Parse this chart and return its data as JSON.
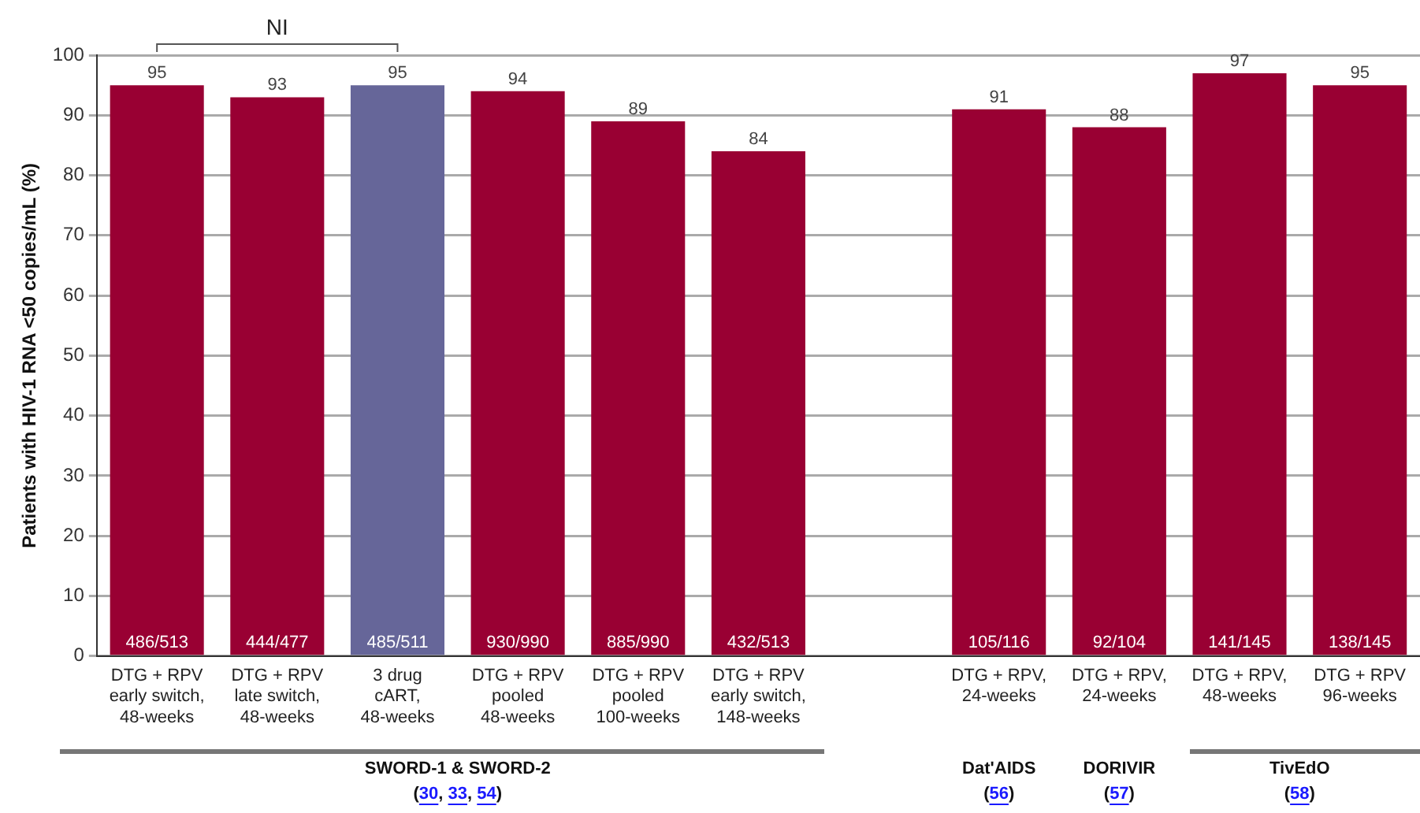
{
  "chart_data": {
    "type": "bar",
    "ylabel": "Patients with HIV-1 RNA <50 copies/mL (%)",
    "categories": [
      "DTG + RPV\nearly switch,\n48-weeks",
      "DTG + RPV\nlate switch,\n48-weeks",
      "3 drug\ncART,\n48-weeks",
      "DTG + RPV\npooled\n48-weeks",
      "DTG + RPV\npooled\n100-weeks",
      "DTG + RPV\nearly switch,\n148-weeks",
      null,
      "DTG + RPV,\n24-weeks",
      "DTG + RPV,\n24-weeks",
      "DTG + RPV,\n48-weeks",
      "DTG + RPV\n96-weeks"
    ],
    "values": [
      95,
      93,
      95,
      94,
      89,
      84,
      null,
      91,
      88,
      97,
      95
    ],
    "colors": [
      "#990033",
      "#990033",
      "#666699",
      "#990033",
      "#990033",
      "#990033",
      "#990033",
      "#990033",
      "#990033",
      "#990033",
      "#990033"
    ],
    "ylim": [
      0,
      100
    ],
    "yticks": [
      0,
      10,
      20,
      30,
      40,
      50,
      60,
      70,
      80,
      90,
      100
    ],
    "grid": "y",
    "legend": false,
    "data_labels": true,
    "annotations": [
      "486/513",
      "444/477",
      "485/511",
      "930/990",
      "885/990",
      "432/513",
      "105/116",
      "92/104",
      "141/145",
      "138/145",
      "NI",
      "SWORD-1 & SWORD-2",
      "(30, 33, 54)",
      "Dat'AIDS",
      "(56)",
      "DORIVIR",
      "(57)",
      "TivEdO",
      "(58)"
    ]
  }
}
